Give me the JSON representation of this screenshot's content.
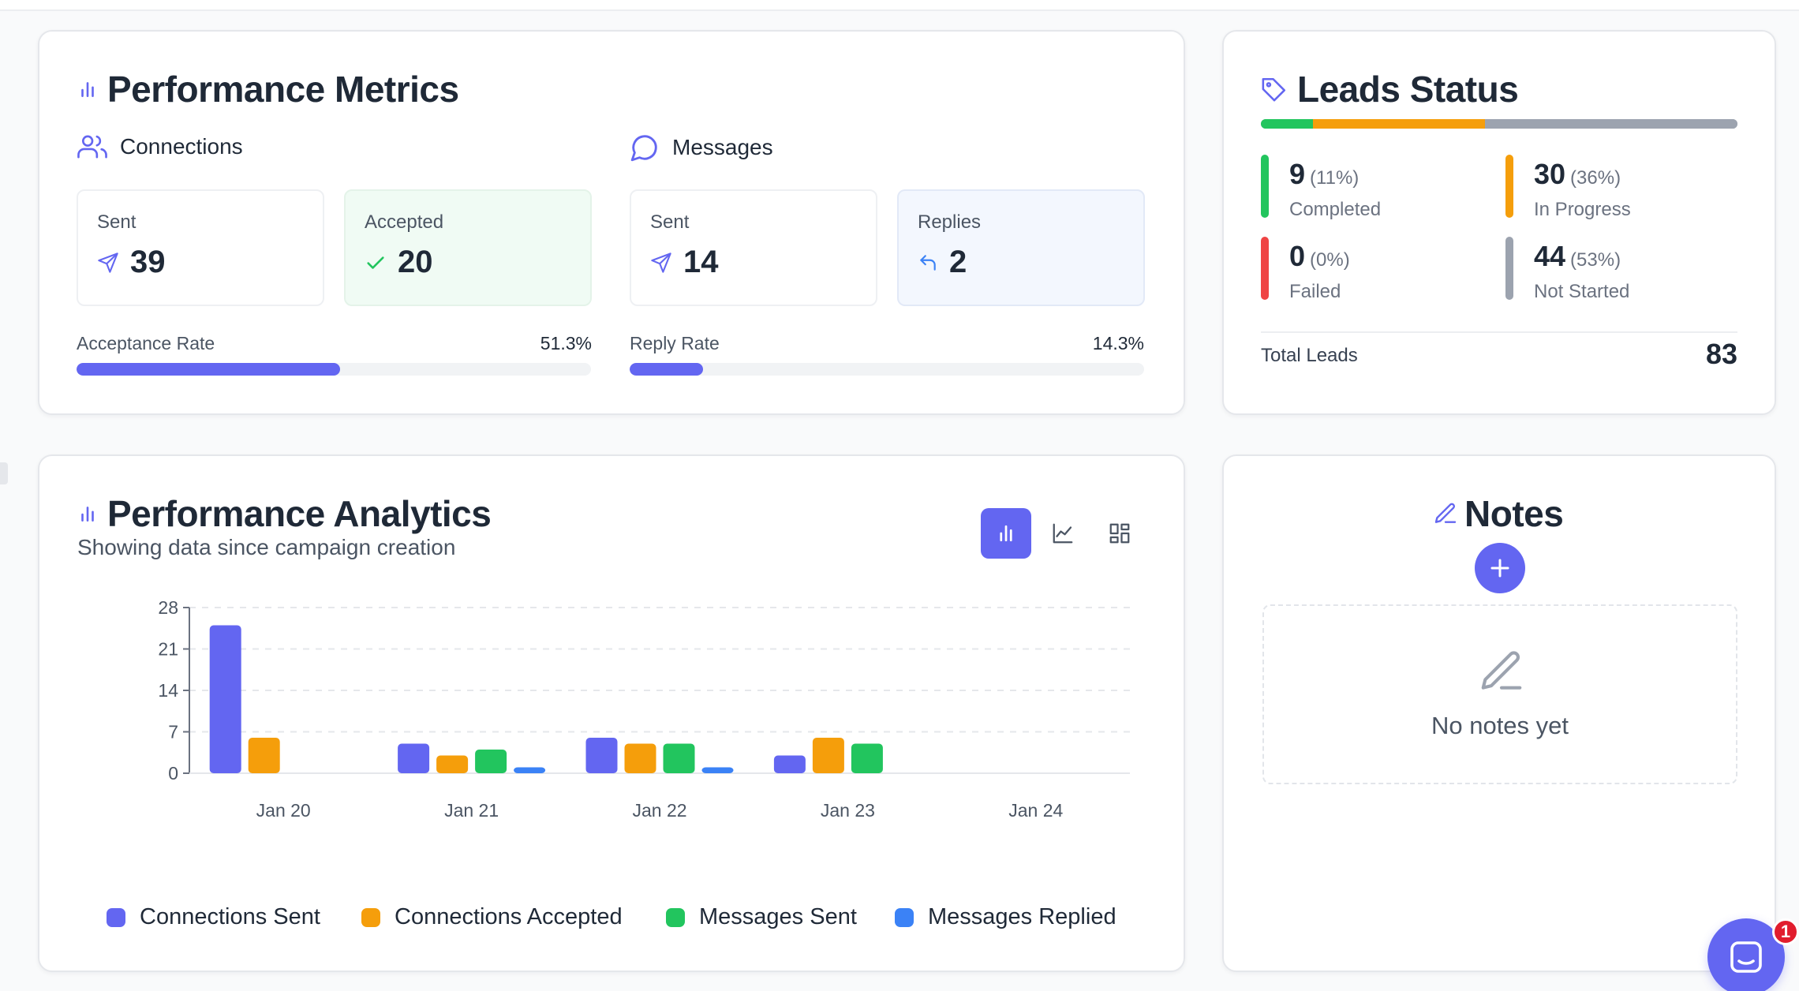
{
  "performance_metrics": {
    "title": "Performance Metrics",
    "connections": {
      "heading": "Connections",
      "sent_label": "Sent",
      "sent_value": "39",
      "accepted_label": "Accepted",
      "accepted_value": "20",
      "rate_label": "Acceptance Rate",
      "rate_value": "51.3%",
      "rate_fraction": 0.513
    },
    "messages": {
      "heading": "Messages",
      "sent_label": "Sent",
      "sent_value": "14",
      "replies_label": "Replies",
      "replies_value": "2",
      "rate_label": "Reply Rate",
      "rate_value": "14.3%",
      "rate_fraction": 0.143
    }
  },
  "leads_status": {
    "title": "Leads Status",
    "items": [
      {
        "count": "9",
        "percent": "(11%)",
        "label": "Completed",
        "color": "#22c55e",
        "share": 0.11
      },
      {
        "count": "30",
        "percent": "(36%)",
        "label": "In Progress",
        "color": "#f59e0b",
        "share": 0.36
      },
      {
        "count": "0",
        "percent": "(0%)",
        "label": "Failed",
        "color": "#ef4444",
        "share": 0.0
      },
      {
        "count": "44",
        "percent": "(53%)",
        "label": "Not Started",
        "color": "#9ca3af",
        "share": 0.53
      }
    ],
    "total_label": "Total Leads",
    "total_value": "83"
  },
  "performance_analytics": {
    "title": "Performance Analytics",
    "subtitle": "Showing data since campaign creation",
    "view_buttons": [
      {
        "icon": "bar-chart-icon",
        "active": true
      },
      {
        "icon": "line-chart-icon",
        "active": false
      },
      {
        "icon": "grid-view-icon",
        "active": false
      }
    ]
  },
  "chart_data": {
    "type": "bar",
    "categories": [
      "Jan 20",
      "Jan 21",
      "Jan 22",
      "Jan 23",
      "Jan 24"
    ],
    "series": [
      {
        "name": "Connections Sent",
        "color": "#6366f1",
        "values": [
          25,
          5,
          6,
          3,
          0
        ]
      },
      {
        "name": "Connections Accepted",
        "color": "#f59e0b",
        "values": [
          6,
          3,
          5,
          6,
          0
        ]
      },
      {
        "name": "Messages Sent",
        "color": "#22c55e",
        "values": [
          0,
          4,
          5,
          5,
          0
        ]
      },
      {
        "name": "Messages Replied",
        "color": "#3b82f6",
        "values": [
          0,
          1,
          1,
          0,
          0
        ]
      }
    ],
    "yticks": [
      0,
      7,
      14,
      21,
      28
    ],
    "ylim": [
      0,
      28
    ],
    "grid": true,
    "legend_position": "bottom"
  },
  "notes": {
    "title": "Notes",
    "empty_text": "No notes yet"
  },
  "chat_widget": {
    "badge_count": "1"
  }
}
